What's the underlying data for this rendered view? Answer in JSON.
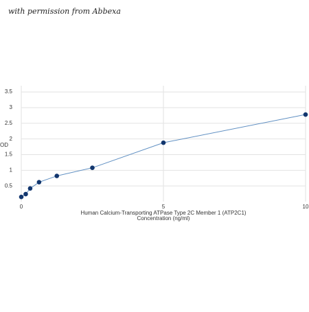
{
  "watermark": "with permission from Abbexa",
  "chart_data": {
    "type": "line",
    "ylabel": "OD",
    "xlabel": [
      "Human Calcium-Transporting ATPase Type 2C Member 1 (ATP2C1)",
      "Concentration (ng/ml)"
    ],
    "x": [
      0,
      0.156,
      0.312,
      0.625,
      1.25,
      2.5,
      5,
      10
    ],
    "values": [
      0.15,
      0.24,
      0.42,
      0.62,
      0.82,
      1.08,
      1.88,
      2.78
    ],
    "line_color": "#5f8fc2",
    "marker_color": "#12366e",
    "xlim": [
      0,
      10
    ],
    "xticks": [
      0,
      5,
      10
    ],
    "ylim": [
      0,
      3.7
    ],
    "yticks": [
      0.5,
      1,
      1.5,
      2,
      2.5,
      3,
      3.5
    ],
    "grid": true
  }
}
